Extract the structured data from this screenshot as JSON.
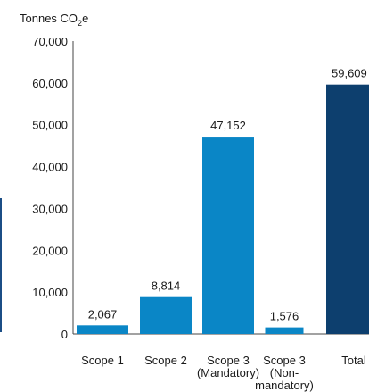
{
  "chart_data": {
    "type": "bar",
    "ylabel_prefix": "Tonnes CO",
    "ylabel_sub": "2",
    "ylabel_suffix": "e",
    "ylim": [
      0,
      70000
    ],
    "yticks": [
      0,
      10000,
      20000,
      30000,
      40000,
      50000,
      60000,
      70000
    ],
    "ytick_labels": [
      "0",
      "10,000",
      "20,000",
      "30,000",
      "40,000",
      "50,000",
      "60,000",
      "70,000"
    ],
    "categories": [
      [
        "Scope 1"
      ],
      [
        "Scope 2"
      ],
      [
        "Scope 3",
        "(Mandatory)"
      ],
      [
        "Scope 3",
        "(Non-",
        "mandatory)"
      ],
      [
        "Total"
      ]
    ],
    "values": [
      2067,
      8814,
      47152,
      1576,
      59609
    ],
    "value_labels": [
      "2,067",
      "8,814",
      "47,152",
      "1,576",
      "59,609"
    ],
    "grid": false,
    "colors": {
      "bar": "#0a86c6",
      "total_bar": "#0d3f6e",
      "axis": "#444444",
      "text": "#1a1a1a"
    }
  }
}
